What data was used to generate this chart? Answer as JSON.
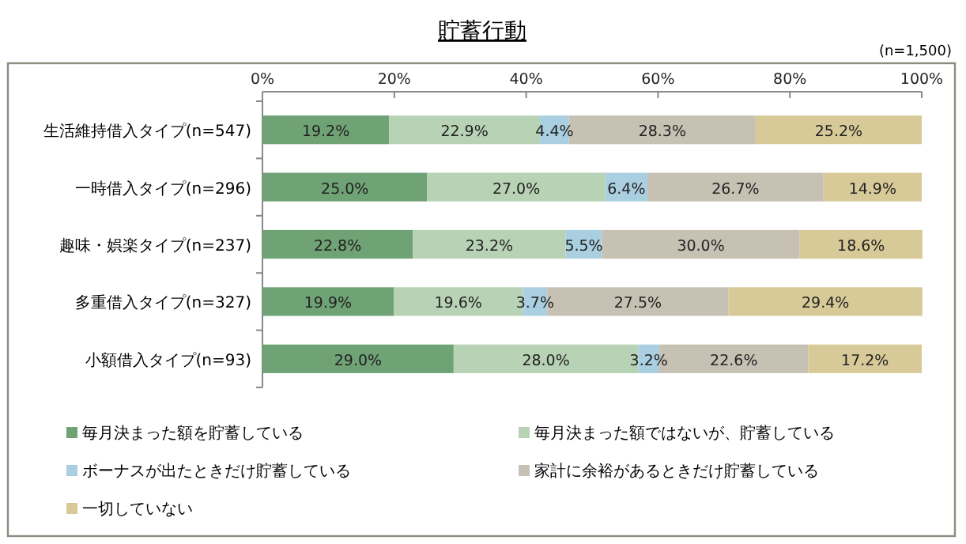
{
  "chart_data": {
    "type": "bar",
    "orientation": "horizontal",
    "stacked": true,
    "title": "貯蓄行動",
    "annotations": [
      "(n=1,500)"
    ],
    "categories": [
      "生活維持借入タイプ(n=547)",
      "一時借入タイプ(n=296)",
      "趣味・娯楽タイプ(n=237)",
      "多重借入タイプ(n=327)",
      "小額借入タイプ(n=93)"
    ],
    "series": [
      {
        "name": "毎月決まった額を貯蓄している",
        "color": "#6fa274",
        "values": [
          19.2,
          25.0,
          22.8,
          19.9,
          29.0
        ]
      },
      {
        "name": "毎月決まった額ではないが、貯蓄している",
        "color": "#b7d2b4",
        "values": [
          22.9,
          27.0,
          23.2,
          19.6,
          28.0
        ]
      },
      {
        "name": "ボーナスが出たときだけ貯蓄している",
        "color": "#a9cfe0",
        "values": [
          4.4,
          6.4,
          5.5,
          3.7,
          3.2
        ]
      },
      {
        "name": "家計に余裕があるときだけ貯蓄している",
        "color": "#c6c1b3",
        "values": [
          28.3,
          26.7,
          30.0,
          27.5,
          22.6
        ]
      },
      {
        "name": "一切していない",
        "color": "#d8ca98",
        "values": [
          25.2,
          14.9,
          18.6,
          29.4,
          17.2
        ]
      }
    ],
    "xlim": [
      0,
      100
    ],
    "xticks": [
      {
        "value": 0,
        "label": "0%"
      },
      {
        "value": 20,
        "label": "20%"
      },
      {
        "value": 40,
        "label": "40%"
      },
      {
        "value": 60,
        "label": "60%"
      },
      {
        "value": 80,
        "label": "80%"
      },
      {
        "value": 100,
        "label": "100%"
      }
    ],
    "value_labels": [
      [
        "19.2%",
        "22.9%",
        "4.4%",
        "28.3%",
        "25.2%"
      ],
      [
        "25.0%",
        "27.0%",
        "6.4%",
        "26.7%",
        "14.9%"
      ],
      [
        "22.8%",
        "23.2%",
        "5.5%",
        "30.0%",
        "18.6%"
      ],
      [
        "19.9%",
        "19.6%",
        "3.7%",
        "27.5%",
        "29.4%"
      ],
      [
        "29.0%",
        "28.0%",
        "3.2%",
        "22.6%",
        "17.2%"
      ]
    ],
    "grid": false,
    "legend": "bottom"
  }
}
